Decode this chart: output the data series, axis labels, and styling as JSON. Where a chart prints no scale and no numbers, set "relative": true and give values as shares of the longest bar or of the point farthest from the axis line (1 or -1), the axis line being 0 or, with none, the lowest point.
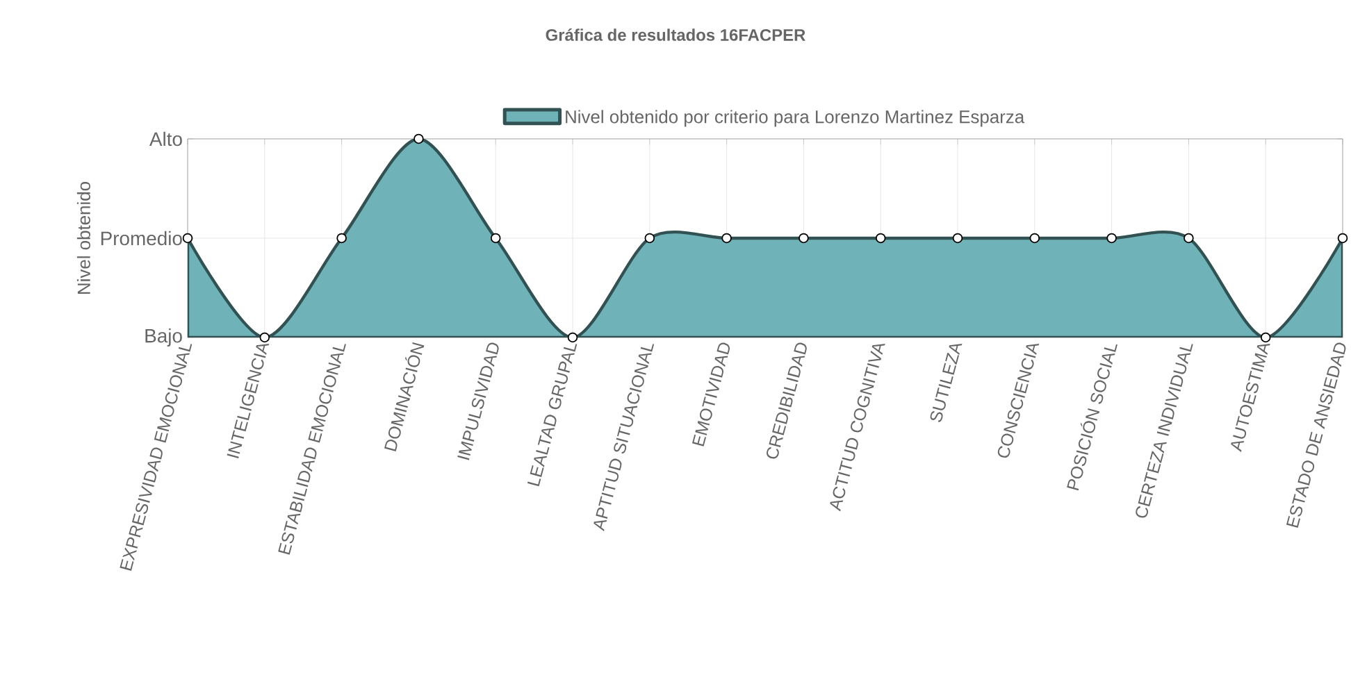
{
  "chart_data": {
    "type": "area",
    "title": "Gráfica de resultados 16FACPER",
    "ylabel": "Nivel obtenido",
    "categories": [
      "EXPRESIVIDAD EMOCIONAL",
      "INTELIGENCIA",
      "ESTABILIDAD EMOCIONAL",
      "DOMINACIÓN",
      "IMPULSIVIDAD",
      "LEALTAD GRUPAL",
      "APTITUD SITUACIONAL",
      "EMOTIVIDAD",
      "CREDIBILIDAD",
      "ACTITUD COGNITIVA",
      "SUTILEZA",
      "CONSCIENCIA",
      "POSICIÓN SOCIAL",
      "CERTEZA INDIVIDUAL",
      "AUTOESTIMA",
      "ESTADO DE ANSIEDAD"
    ],
    "series": [
      {
        "name": "Nivel obtenido por criterio para Lorenzo Martinez Esparza",
        "color": "#6fb3b8",
        "values": [
          0.5,
          0,
          0.5,
          1,
          0.5,
          0,
          0.5,
          0.5,
          0.5,
          0.5,
          0.5,
          0.5,
          0.5,
          0.5,
          0,
          0.5
        ]
      }
    ],
    "relative": true,
    "annotations": [
      "Bajo",
      "Promedio",
      "Alto"
    ],
    "grid": true,
    "legend": "top",
    "marker": "circle"
  }
}
